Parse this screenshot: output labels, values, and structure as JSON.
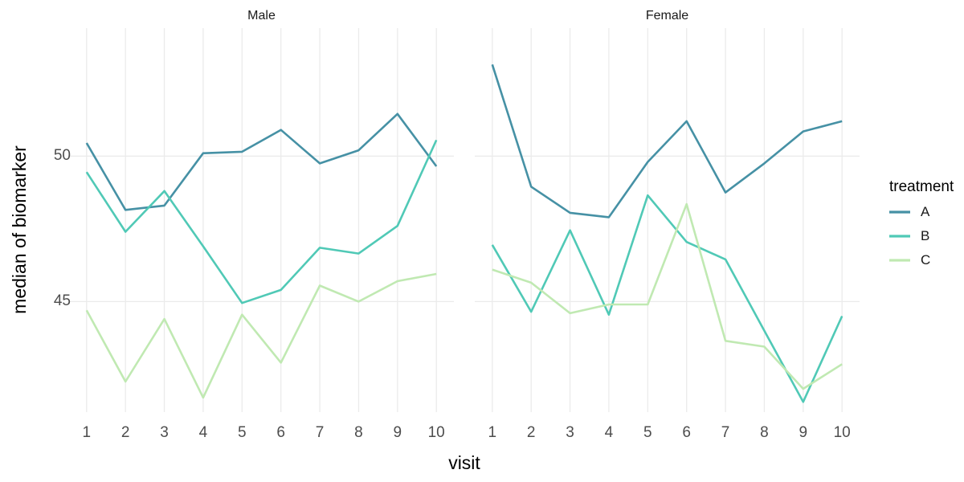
{
  "chart_data": {
    "type": "line",
    "title": "",
    "xlabel": "visit",
    "ylabel": "median of biomarker",
    "x": [
      1,
      2,
      3,
      4,
      5,
      6,
      7,
      8,
      9,
      10
    ],
    "x_ticks": [
      "1",
      "2",
      "3",
      "4",
      "5",
      "6",
      "7",
      "8",
      "9",
      "10"
    ],
    "y_ticks": [
      {
        "value": 50,
        "label": "50"
      },
      {
        "value": 45,
        "label": "45"
      }
    ],
    "ylim": [
      41.2,
      54.4
    ],
    "grid": "major-only",
    "legend_position": "right",
    "facets": [
      {
        "label": "Male",
        "series": [
          {
            "name": "A",
            "values": [
              50.45,
              48.15,
              48.3,
              50.1,
              50.15,
              50.9,
              49.75,
              50.2,
              51.45,
              49.65
            ]
          },
          {
            "name": "B",
            "values": [
              49.45,
              47.4,
              48.8,
              46.9,
              44.95,
              45.4,
              46.85,
              46.65,
              47.6,
              50.55
            ]
          },
          {
            "name": "C",
            "values": [
              44.7,
              42.25,
              44.4,
              41.7,
              44.55,
              42.9,
              45.55,
              45.0,
              45.7,
              45.95
            ]
          }
        ]
      },
      {
        "label": "Female",
        "series": [
          {
            "name": "A",
            "values": [
              53.15,
              48.95,
              48.05,
              47.9,
              49.8,
              51.2,
              48.75,
              49.75,
              50.85,
              51.2
            ]
          },
          {
            "name": "B",
            "values": [
              46.95,
              44.65,
              47.45,
              44.55,
              48.65,
              47.05,
              46.45,
              44.0,
              41.55,
              44.5
            ]
          },
          {
            "name": "C",
            "values": [
              46.1,
              45.65,
              44.6,
              44.9,
              44.9,
              48.35,
              43.65,
              43.45,
              42.0,
              42.85
            ]
          }
        ]
      }
    ],
    "legend": {
      "title": "treatment",
      "items": [
        {
          "label": "A",
          "color": "#4691a5"
        },
        {
          "label": "B",
          "color": "#50c9b6"
        },
        {
          "label": "C",
          "color": "#c0e9b2"
        }
      ]
    },
    "colors": {
      "background": "#ffffff",
      "gridline": "#ebebeb",
      "axis_text": "#4d4d4d",
      "axis_title": "#000000",
      "strip_text": "#1a1a1a"
    }
  }
}
